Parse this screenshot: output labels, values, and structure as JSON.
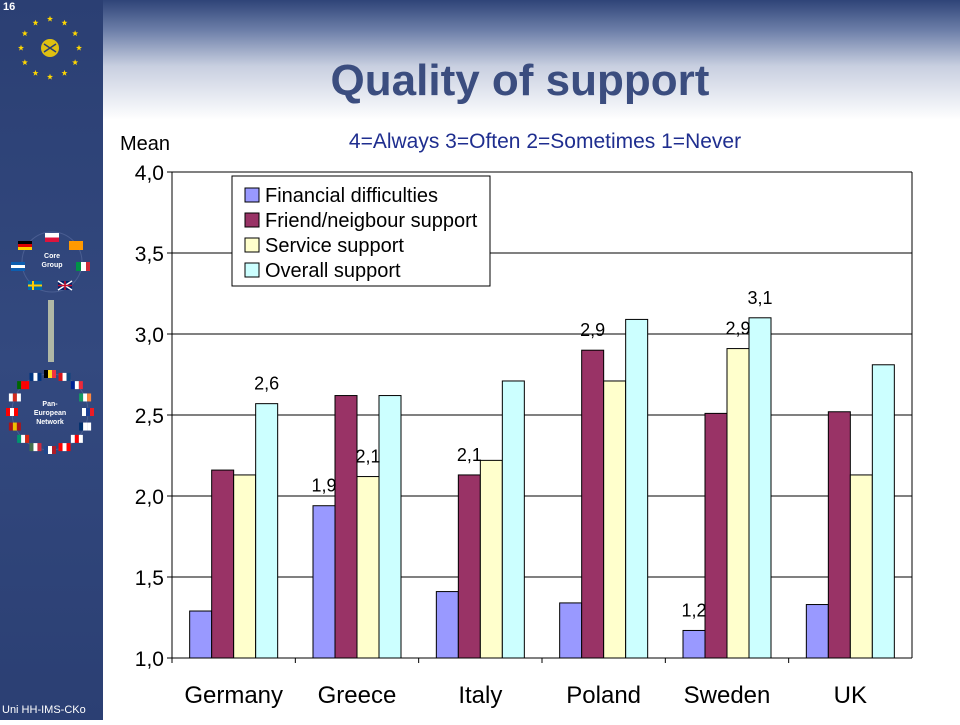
{
  "slide": {
    "number": "16",
    "title": "Quality of support",
    "footer": "Uni HH-IMS-CKo"
  },
  "sidebar": {
    "core_group_label": [
      "Core",
      "Group"
    ],
    "network_label": [
      "Pan-",
      "European",
      "Network"
    ]
  },
  "colors": {
    "sidebar": "#2b3f73",
    "title": "#3b4d7f",
    "subtitle": "#1f2e8f"
  },
  "chart_data": {
    "type": "bar",
    "title": "4=Always 3=Often 2=Sometimes 1=Never",
    "ylabel": "Mean",
    "xlabel": "",
    "ylim": [
      1.0,
      4.0
    ],
    "yticks": [
      "1,0",
      "1,5",
      "2,0",
      "2,5",
      "3,0",
      "3,5",
      "4,0"
    ],
    "grid": true,
    "legend_position": "top-left",
    "categories": [
      "Germany",
      "Greece",
      "Italy",
      "Poland",
      "Sweden",
      "UK"
    ],
    "series": [
      {
        "name": "Financial difficulties",
        "color": "#9999ff",
        "values": [
          1.29,
          1.94,
          1.41,
          1.34,
          1.17,
          1.33
        ]
      },
      {
        "name": "Friend/neigbour support",
        "color": "#993366",
        "values": [
          2.16,
          2.62,
          2.13,
          2.9,
          2.51,
          2.52
        ]
      },
      {
        "name": "Service support",
        "color": "#ffffcc",
        "values": [
          2.13,
          2.12,
          2.22,
          2.71,
          2.91,
          2.13
        ]
      },
      {
        "name": "Overall support",
        "color": "#ccffff",
        "values": [
          2.57,
          2.62,
          2.71,
          3.09,
          3.1,
          2.81
        ]
      }
    ],
    "data_labels": [
      {
        "text": "2,6",
        "category": 0,
        "series": 3
      },
      {
        "text": "1,9",
        "category": 1,
        "series": 0
      },
      {
        "text": "2,1",
        "category": 1,
        "series": 2
      },
      {
        "text": "2,1",
        "category": 2,
        "series": 1
      },
      {
        "text": "2,9",
        "category": 3,
        "series": 1
      },
      {
        "text": "1,2",
        "category": 4,
        "series": 0
      },
      {
        "text": "2,9",
        "category": 4,
        "series": 2
      },
      {
        "text": "3,1",
        "category": 4,
        "series": 3
      }
    ]
  }
}
